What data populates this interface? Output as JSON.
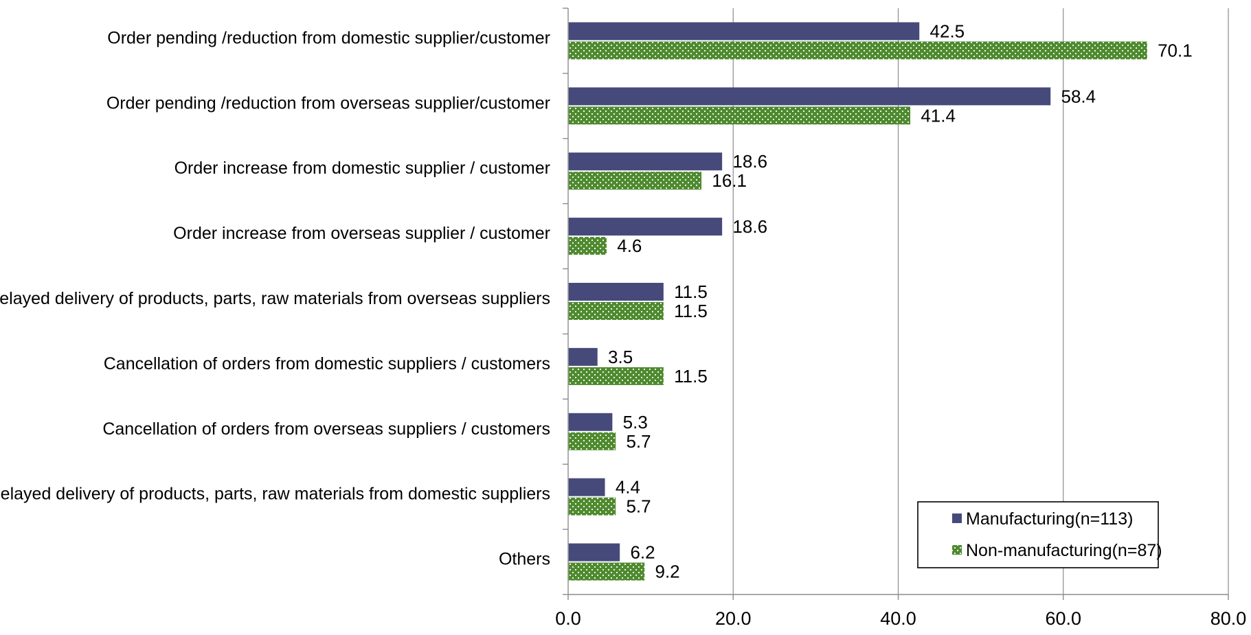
{
  "chart_data": {
    "type": "bar",
    "orientation": "horizontal",
    "categories": [
      "Order pending /reduction from domestic supplier/customer",
      "Order pending /reduction from overseas supplier/customer",
      "Order increase from domestic supplier / customer",
      "Order increase from overseas supplier / customer",
      "Delayed delivery of products, parts, raw materials from overseas suppliers",
      "Cancellation of orders from domestic suppliers / customers",
      "Cancellation of orders from overseas  suppliers / customers",
      "Delayed delivery of products, parts, raw materials from domestic suppliers",
      "Others"
    ],
    "series": [
      {
        "name": "Manufacturing(n=113)",
        "values": [
          42.5,
          58.4,
          18.6,
          18.6,
          11.5,
          3.5,
          5.3,
          4.4,
          6.2
        ],
        "labels": [
          "42.5",
          "58.4",
          "18.6",
          "18.6",
          "11.5",
          "3.5",
          "5.3",
          "4.4",
          "6.2"
        ],
        "color": "#464A7A"
      },
      {
        "name": "Non-manufacturing(n=87)",
        "values": [
          70.1,
          41.4,
          16.1,
          4.6,
          11.5,
          11.5,
          5.7,
          5.7,
          9.2
        ],
        "labels": [
          "70.1",
          "41.4",
          "16.1",
          "4.6",
          "11.5",
          "11.5",
          "5.7",
          "5.7",
          "9.2"
        ],
        "color": "#4E8A2E",
        "pattern": "dotted"
      }
    ],
    "xlim": [
      0,
      80
    ],
    "xticks": [
      0,
      20,
      40,
      60,
      80
    ],
    "xtick_labels": [
      "0.0",
      "20.0",
      "40.0",
      "60.0",
      "80.0"
    ],
    "grid": "vertical",
    "legend_position": "bottom-right",
    "title": "",
    "xlabel": "",
    "ylabel": ""
  }
}
